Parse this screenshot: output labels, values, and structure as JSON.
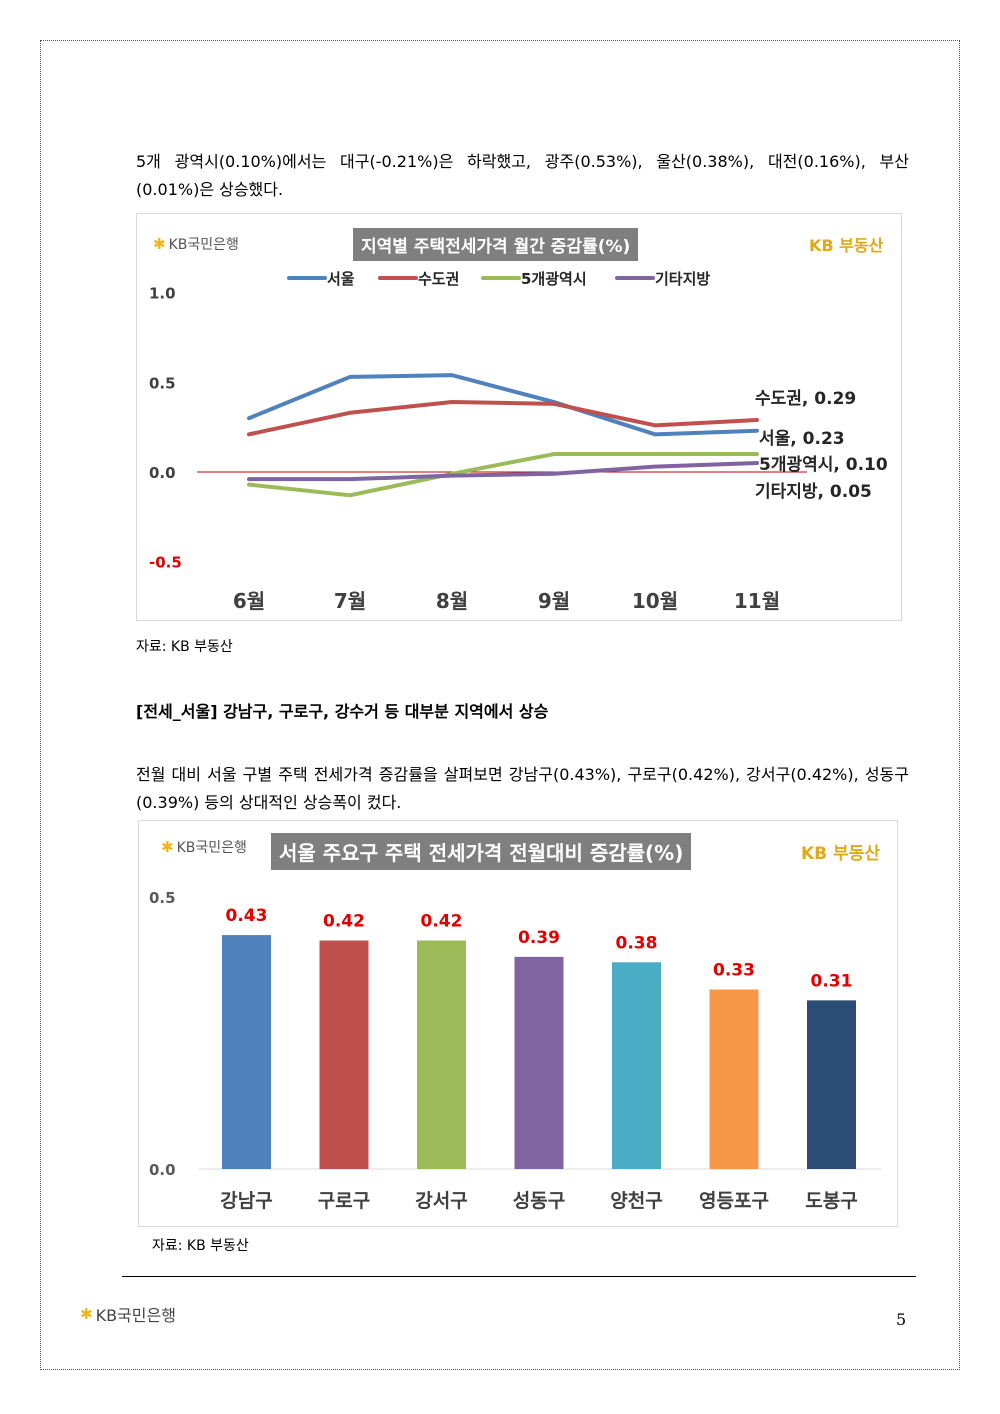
{
  "paragraphs": {
    "p1": "5개 광역시(0.10%)에서는 대구(-0.21%)은 하락했고, 광주(0.53%), 울산(0.38%), 대전(0.16%), 부산(0.01%)은 상승했다.",
    "p2": "전월 대비 서울 구별 주택 전세가격 증감률을 살펴보면 강남구(0.43%), 구로구(0.42%), 강서구(0.42%), 성동구(0.39%) 등의 상대적인 상승폭이 컸다."
  },
  "heading": "[전세_서울] 강남구, 구로구, 강수거 등 대부분 지역에서 상승",
  "source1": "자료: KB 부동산",
  "source2": "자료: KB 부동산",
  "logo_text": "KB국민은행",
  "logo_star": "✱",
  "kb_realestate": "KB 부동산",
  "footer": {
    "logo_text": "KB국민은행",
    "page_number": "5"
  },
  "colors": {
    "seoul": "#4f81bd",
    "capital": "#c0504d",
    "metro5": "#9bbb59",
    "other": "#8064a2",
    "title_bg": "#7f7f7f",
    "label_red": "#e00000",
    "kb_yellow": "#f2b418"
  },
  "chart_data": [
    {
      "type": "line",
      "title": "지역별 주택전세가격 월간 증감률(%)",
      "categories": [
        "6월",
        "7월",
        "8월",
        "9월",
        "10월",
        "11월"
      ],
      "ylim": [
        -0.5,
        1.0
      ],
      "yticks": [
        "1.0",
        "0.5",
        "0.0",
        "-0.5"
      ],
      "ytick_values": [
        1.0,
        0.5,
        0.0,
        -0.5
      ],
      "legend_position": "top",
      "grid": false,
      "series": [
        {
          "name": "서울",
          "color": "#4f81bd",
          "values": [
            0.3,
            0.53,
            0.54,
            0.39,
            0.21,
            0.23
          ],
          "end_label": "서울, 0.23"
        },
        {
          "name": "수도권",
          "color": "#c0504d",
          "values": [
            0.21,
            0.33,
            0.39,
            0.38,
            0.26,
            0.29
          ],
          "end_label": "수도권, 0.29"
        },
        {
          "name": "5개광역시",
          "color": "#9bbb59",
          "values": [
            -0.07,
            -0.13,
            -0.01,
            0.1,
            0.1,
            0.1
          ],
          "end_label": "5개광역시, 0.10"
        },
        {
          "name": "기타지방",
          "color": "#8064a2",
          "values": [
            -0.04,
            -0.04,
            -0.02,
            -0.01,
            0.03,
            0.05
          ],
          "end_label": "기타지방, 0.05"
        }
      ]
    },
    {
      "type": "bar",
      "title": "서울 주요구 주택 전세가격 전월대비 증감률(%)",
      "categories": [
        "강남구",
        "구로구",
        "강서구",
        "성동구",
        "양천구",
        "영등포구",
        "도봉구"
      ],
      "values": [
        0.43,
        0.42,
        0.42,
        0.39,
        0.38,
        0.33,
        0.31
      ],
      "value_labels": [
        "0.43",
        "0.42",
        "0.42",
        "0.39",
        "0.38",
        "0.33",
        "0.31"
      ],
      "colors": [
        "#4f81bd",
        "#c0504d",
        "#9bbb59",
        "#8064a2",
        "#4bacc6",
        "#f79646",
        "#2c4d75"
      ],
      "ylim": [
        0.0,
        0.5
      ],
      "yticks": [
        "0.5",
        "0.0"
      ],
      "ytick_values": [
        0.5,
        0.0
      ],
      "grid": false
    }
  ]
}
